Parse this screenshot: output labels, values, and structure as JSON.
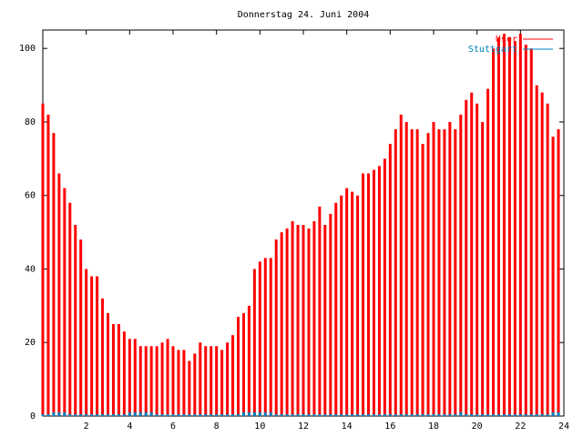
{
  "chart_data": {
    "type": "impulse",
    "title": "Donnerstag 24. Juni 2004",
    "x": [
      0,
      0.25,
      0.5,
      0.75,
      1,
      1.25,
      1.5,
      1.75,
      2,
      2.25,
      2.5,
      2.75,
      3,
      3.25,
      3.5,
      3.75,
      4,
      4.25,
      4.5,
      4.75,
      5,
      5.25,
      5.5,
      5.75,
      6,
      6.25,
      6.5,
      6.75,
      7,
      7.25,
      7.5,
      7.75,
      8,
      8.25,
      8.5,
      8.75,
      9,
      9.25,
      9.5,
      9.75,
      10,
      10.25,
      10.5,
      10.75,
      11,
      11.25,
      11.5,
      11.75,
      12,
      12.25,
      12.5,
      12.75,
      13,
      13.25,
      13.5,
      13.75,
      14,
      14.25,
      14.5,
      14.75,
      15,
      15.25,
      15.5,
      15.75,
      16,
      16.25,
      16.5,
      16.75,
      17,
      17.25,
      17.5,
      17.75,
      18,
      18.25,
      18.5,
      18.75,
      19,
      19.25,
      19.5,
      19.75,
      20,
      20.25,
      20.5,
      20.75,
      21,
      21.25,
      21.5,
      21.75,
      22,
      22.25,
      22.5,
      22.75,
      23,
      23.25,
      23.5,
      23.75
    ],
    "series": [
      {
        "name": "User",
        "color": "#ff0000",
        "values": [
          85,
          82,
          77,
          66,
          62,
          58,
          52,
          48,
          40,
          38,
          38,
          32,
          28,
          25,
          25,
          23,
          21,
          21,
          19,
          19,
          19,
          19,
          20,
          21,
          19,
          18,
          18,
          15,
          17,
          20,
          19,
          19,
          19,
          18,
          20,
          22,
          27,
          28,
          30,
          40,
          42,
          43,
          43,
          48,
          50,
          51,
          53,
          52,
          52,
          51,
          53,
          57,
          52,
          55,
          58,
          60,
          62,
          61,
          60,
          66,
          66,
          67,
          68,
          70,
          74,
          78,
          82,
          80,
          78,
          78,
          74,
          77,
          80,
          78,
          78,
          80,
          78,
          82,
          86,
          88,
          85,
          80,
          89,
          100,
          103,
          104,
          103,
          102,
          104,
          101,
          100,
          90,
          88,
          85,
          76,
          78
        ]
      },
      {
        "name": "Stuttgart",
        "color": "#0080c0",
        "values": [
          0.5,
          0.5,
          1,
          1,
          1,
          0.5,
          0.5,
          0.5,
          0.5,
          0.5,
          0.5,
          0.5,
          0.5,
          0.5,
          0.5,
          0.5,
          1,
          1,
          1,
          1,
          1,
          0.5,
          0.5,
          0.5,
          0.5,
          0.5,
          0.5,
          0.5,
          0.5,
          0.5,
          0.5,
          0.5,
          0.5,
          0.5,
          0.5,
          0.5,
          0.5,
          1,
          1,
          1,
          1,
          1,
          1,
          0.5,
          0.5,
          0.5,
          0.5,
          0.5,
          0.5,
          0.5,
          0.5,
          0.5,
          0.5,
          0.5,
          0.5,
          0.5,
          0.5,
          0.5,
          0.5,
          0.5,
          0.5,
          0.5,
          0.5,
          0.5,
          0.5,
          0.5,
          0.5,
          0.5,
          0.5,
          0.5,
          0.5,
          0.5,
          0.5,
          0.5,
          0.5,
          0.5,
          0.5,
          1,
          0.5,
          0.5,
          0.5,
          0.5,
          0.5,
          0.5,
          0.5,
          0.5,
          0.5,
          0.5,
          0.5,
          0.5,
          0.5,
          0.5,
          0.5,
          0.5,
          1,
          1
        ]
      }
    ],
    "xlim": [
      0,
      24
    ],
    "xticks": [
      2,
      4,
      6,
      8,
      10,
      12,
      14,
      16,
      18,
      20,
      22,
      24
    ],
    "ylim": [
      0,
      105
    ],
    "yticks": [
      0,
      20,
      40,
      60,
      80,
      100
    ]
  }
}
